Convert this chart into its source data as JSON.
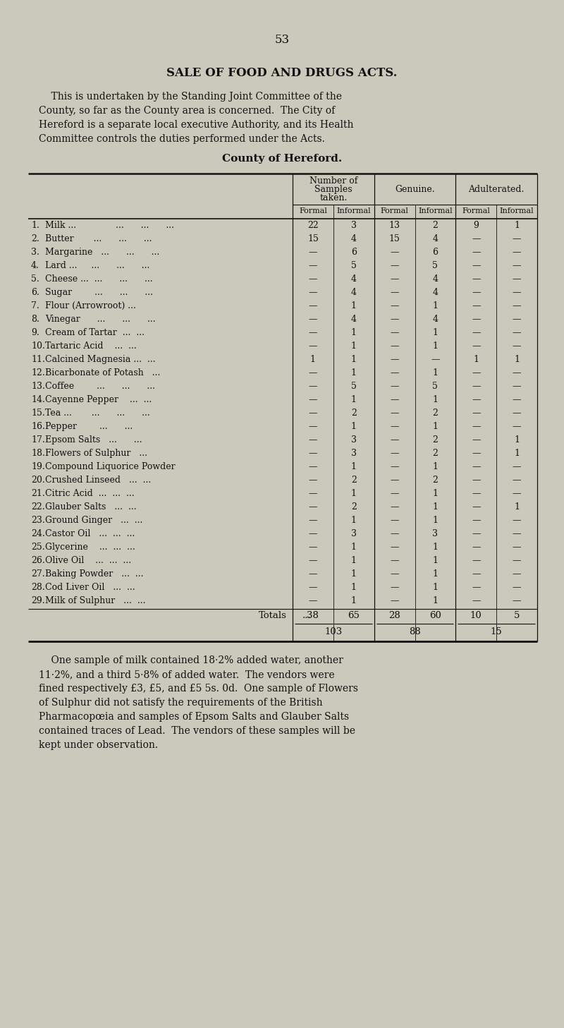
{
  "page_number": "53",
  "title": "SALE OF FOOD AND DRUGS ACTS.",
  "intro_text": [
    "    This is undertaken by the Standing Joint Committee of the",
    "County, so far as the County area is concerned.  The City of",
    "Hereford is a separate local executive Authority, and its Health",
    "Committee controls the duties performed under the Acts."
  ],
  "table_title": "County of Hereford.",
  "col_headers_sub": [
    "Formal",
    "Informal",
    "Formal",
    "Informal",
    "Formal",
    "Informal"
  ],
  "rows": [
    [
      "1.",
      "Milk ...              ...      ...      ...",
      "22",
      "3",
      "13",
      "2",
      "9",
      "1"
    ],
    [
      "2.",
      "Butter       ...      ...      ...",
      "15",
      "4",
      "15",
      "4",
      "—",
      "—"
    ],
    [
      "3.",
      "Margarine   ...      ...      ...",
      "—",
      "6",
      "—",
      "6",
      "—",
      "—"
    ],
    [
      "4.",
      "Lard ...     ...      ...      ...",
      "—",
      "5",
      "—",
      "5",
      "—",
      "—"
    ],
    [
      "5.",
      "Cheese ...  ...      ...      ...",
      "—",
      "4",
      "—",
      "4",
      "—",
      "—"
    ],
    [
      "6.",
      "Sugar        ...      ...      ...",
      "—",
      "4",
      "—",
      "4",
      "—",
      "—"
    ],
    [
      "7.",
      "Flour (Arrowroot) ...",
      "—",
      "1",
      "—",
      "1",
      "—",
      "—"
    ],
    [
      "8.",
      "Vinegar      ...      ...      ...",
      "—",
      "4",
      "—",
      "4",
      "—",
      "—"
    ],
    [
      "9.",
      "Cream of Tartar  ...  ...",
      "—",
      "1",
      "—",
      "1",
      "—",
      "—"
    ],
    [
      "10.",
      "Tartaric Acid    ...  ...",
      "—",
      "1",
      "—",
      "1",
      "—",
      "—"
    ],
    [
      "11.",
      "Calcined Magnesia ...  ...",
      "1",
      "1",
      "—",
      "—",
      "1",
      "1"
    ],
    [
      "12.",
      "Bicarbonate of Potash   ...",
      "—",
      "1",
      "—",
      "1",
      "—",
      "—"
    ],
    [
      "13.",
      "Coffee        ...      ...      ...",
      "—",
      "5",
      "—",
      "5",
      "—",
      "—"
    ],
    [
      "14.",
      "Cayenne Pepper    ...  ...",
      "—",
      "1",
      "—",
      "1",
      "—",
      "—"
    ],
    [
      "15.",
      "Tea ...       ...      ...      ...",
      "—",
      "2",
      "—",
      "2",
      "—",
      "—"
    ],
    [
      "16.",
      "Pepper        ...      ...",
      "—",
      "1",
      "—",
      "1",
      "—",
      "—"
    ],
    [
      "17.",
      "Epsom Salts   ...      ...",
      "—",
      "3",
      "—",
      "2",
      "—",
      "1"
    ],
    [
      "18.",
      "Flowers of Sulphur   ...",
      "—",
      "3",
      "—",
      "2",
      "—",
      "1"
    ],
    [
      "19.",
      "Compound Liquorice Powder",
      "—",
      "1",
      "—",
      "1",
      "—",
      "—"
    ],
    [
      "20.",
      "Crushed Linseed   ...  ...",
      "—",
      "2",
      "—",
      "2",
      "—",
      "—"
    ],
    [
      "21.",
      "Citric Acid  ...  ...  ...",
      "—",
      "1",
      "—",
      "1",
      "—",
      "—"
    ],
    [
      "22.",
      "Glauber Salts   ...  ...",
      "—",
      "2",
      "—",
      "1",
      "—",
      "1"
    ],
    [
      "23.",
      "Ground Ginger   ...  ...",
      "—",
      "1",
      "—",
      "1",
      "—",
      "—"
    ],
    [
      "24.",
      "Castor Oil   ...  ...  ...",
      "—",
      "3",
      "—",
      "3",
      "—",
      "—"
    ],
    [
      "25.",
      "Glycerine    ...  ...  ...",
      "—",
      "1",
      "—",
      "1",
      "—",
      "—"
    ],
    [
      "26.",
      "Olive Oil    ...  ...  ...",
      "—",
      "1",
      "—",
      "1",
      "—",
      "—"
    ],
    [
      "27.",
      "Baking Powder   ...  ...",
      "—",
      "1",
      "—",
      "1",
      "—",
      "—"
    ],
    [
      "28.",
      "Cod Liver Oil   ...  ...",
      "—",
      "1",
      "—",
      "1",
      "—",
      "—"
    ],
    [
      "29.",
      "Milk of Sulphur   ...  ...",
      "—",
      "1",
      "—",
      "1",
      "—",
      "—"
    ]
  ],
  "totals_vals": [
    "38",
    "65",
    "28",
    "60",
    "10",
    "5"
  ],
  "subtotals": [
    "103",
    "88",
    "15"
  ],
  "footer_text": [
    "    One sample of milk contained 18·2% added water, another",
    "11·2%, and a third 5·8% of added water.  The vendors were",
    "fined respectively £3, £5, and £5 5s. 0d.  One sample of Flowers",
    "of Sulphur did not satisfy the requirements of the British",
    "Pharmacopœia and samples of Epsom Salts and Glauber Salts",
    "contained traces of Lead.  The vendors of these samples will be",
    "kept under observation."
  ],
  "bg_color": "#cbc8bc",
  "text_color": "#111111"
}
